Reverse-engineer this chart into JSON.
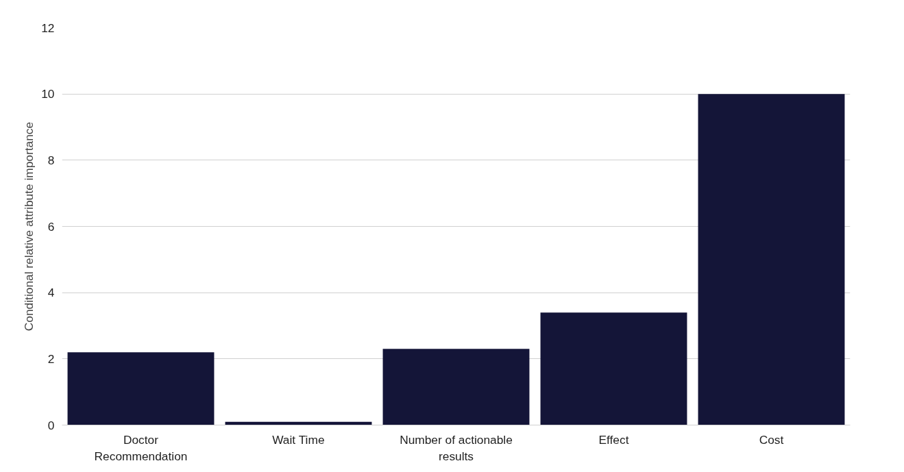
{
  "chart_data": {
    "type": "bar",
    "ylabel": "Conditional relative attribute importance",
    "categories": [
      "Doctor Recommendation",
      "Wait Time",
      "Number of actionable results",
      "Effect",
      "Cost"
    ],
    "values": [
      2.2,
      0.1,
      2.3,
      3.4,
      10
    ],
    "color": "#141538",
    "ylim": [
      0,
      12
    ],
    "yticks": [
      0,
      2,
      4,
      6,
      8,
      10,
      12
    ],
    "grid": "y"
  }
}
